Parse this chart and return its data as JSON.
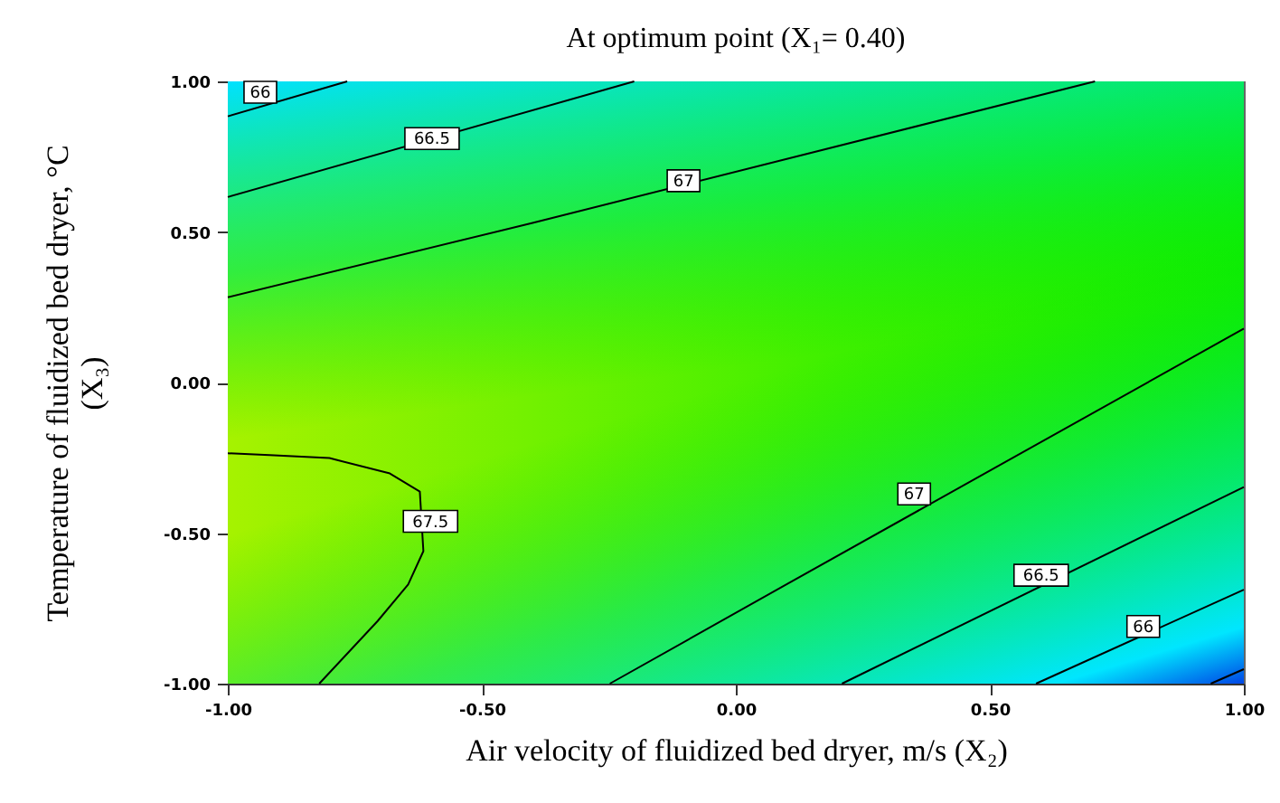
{
  "chart_data": {
    "type": "line",
    "title": "At optimum point (X₁= 0.40)",
    "xlabel": "Air velocity of fluidized bed dryer, m/s (X₂)",
    "ylabel": "Temperature of fluidized bed dryer, °C (X₃)",
    "xlim": [
      -1,
      1
    ],
    "ylim": [
      -1,
      1
    ],
    "xticks": [
      {
        "value": -1,
        "label": "-1.00"
      },
      {
        "value": -0.5,
        "label": "-0.50"
      },
      {
        "value": 0,
        "label": "0.00"
      },
      {
        "value": 0.5,
        "label": "0.50"
      },
      {
        "value": 1,
        "label": "1.00"
      }
    ],
    "yticks": [
      {
        "value": -1,
        "label": "-1.00"
      },
      {
        "value": -0.5,
        "label": "-0.50"
      },
      {
        "value": 0,
        "label": "0.00"
      },
      {
        "value": 0.5,
        "label": "0.50"
      },
      {
        "value": 1,
        "label": "1.00"
      }
    ],
    "legend": false,
    "marker": "none",
    "line_style": "solid",
    "series": [
      {
        "color": "#000000",
        "x": [
          -1,
          -0.765
        ],
        "values": [
          0.884,
          1.0
        ]
      },
      {
        "color": "#000000",
        "x": [
          -1,
          -0.2
        ],
        "values": [
          0.616,
          1.0
        ]
      },
      {
        "color": "#000000",
        "x": [
          -1,
          -0.4,
          0.707
        ],
        "values": [
          0.283,
          0.53,
          1.0
        ]
      },
      {
        "color": "#000000",
        "x": [
          -0.248,
          0.1,
          1
        ],
        "values": [
          -1,
          -0.67,
          0.179
        ]
      },
      {
        "color": "#000000",
        "x": [
          0.209,
          1
        ],
        "values": [
          -1,
          -0.347
        ]
      },
      {
        "color": "#000000",
        "x": [
          0.591,
          1
        ],
        "values": [
          -1,
          -0.688
        ]
      },
      {
        "color": "#000000",
        "x": [
          0.935,
          1
        ],
        "values": [
          -1,
          -0.952
        ]
      },
      {
        "color": "#000000",
        "x": [
          -1,
          -0.918,
          -0.8,
          -0.681,
          -0.622,
          -0.615,
          -0.645,
          -0.705,
          -0.82
        ],
        "values": [
          -0.235,
          -0.241,
          -0.251,
          -0.302,
          -0.362,
          -0.56,
          -0.671,
          -0.792,
          -1
        ]
      }
    ],
    "annotations": [
      {
        "text": "66",
        "x": -0.936,
        "y": 0.964
      },
      {
        "text": "66.5",
        "x": -0.598,
        "y": 0.81
      },
      {
        "text": "67",
        "x": -0.103,
        "y": 0.67
      },
      {
        "text": "67",
        "x": 0.351,
        "y": -0.37
      },
      {
        "text": "66.5",
        "x": 0.601,
        "y": -0.64
      },
      {
        "text": "66",
        "x": 0.802,
        "y": -0.81
      },
      {
        "text": "67.5",
        "x": -0.601,
        "y": -0.461
      }
    ]
  }
}
